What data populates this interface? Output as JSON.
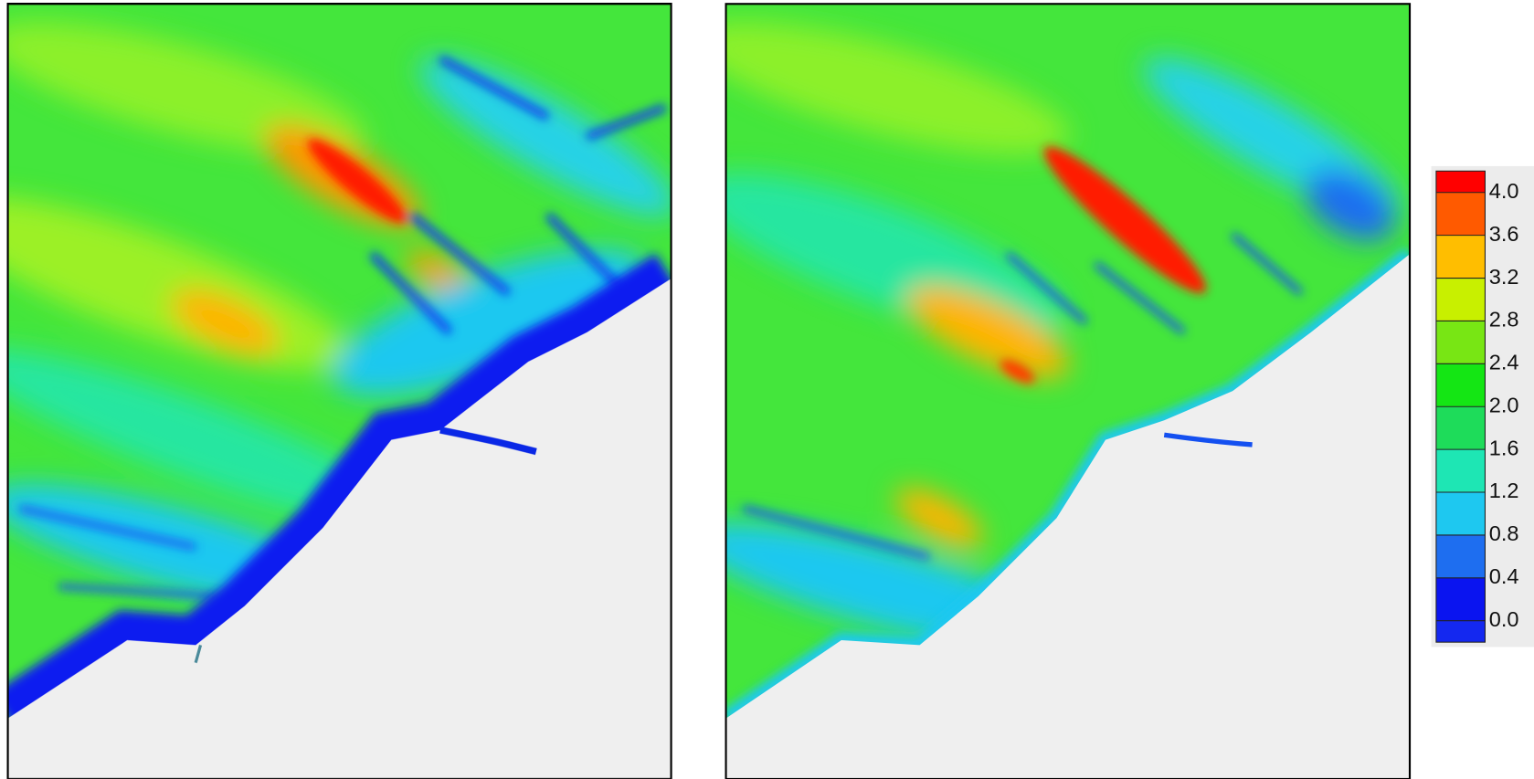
{
  "colorbar": {
    "lim": [
      -0.2,
      4.2
    ],
    "ticks": [
      {
        "value": 4.0,
        "label": "4.0"
      },
      {
        "value": 3.6,
        "label": "3.6"
      },
      {
        "value": 3.2,
        "label": "3.2"
      },
      {
        "value": 2.8,
        "label": "2.8"
      },
      {
        "value": 2.4,
        "label": "2.4"
      },
      {
        "value": 2.0,
        "label": "2.0"
      },
      {
        "value": 1.6,
        "label": "1.6"
      },
      {
        "value": 1.2,
        "label": "1.2"
      },
      {
        "value": 0.8,
        "label": "0.8"
      },
      {
        "value": 0.4,
        "label": "0.4"
      },
      {
        "value": 0,
        "label": "0.0"
      }
    ],
    "colors": [
      "#ff0000",
      "#ff5a00",
      "#ffbe00",
      "#c8f000",
      "#78e614",
      "#14e614",
      "#1edc5a",
      "#1ee6b4",
      "#1ec8f0",
      "#1e6ef0",
      "#0a14f0",
      "#1428f0"
    ]
  }
}
